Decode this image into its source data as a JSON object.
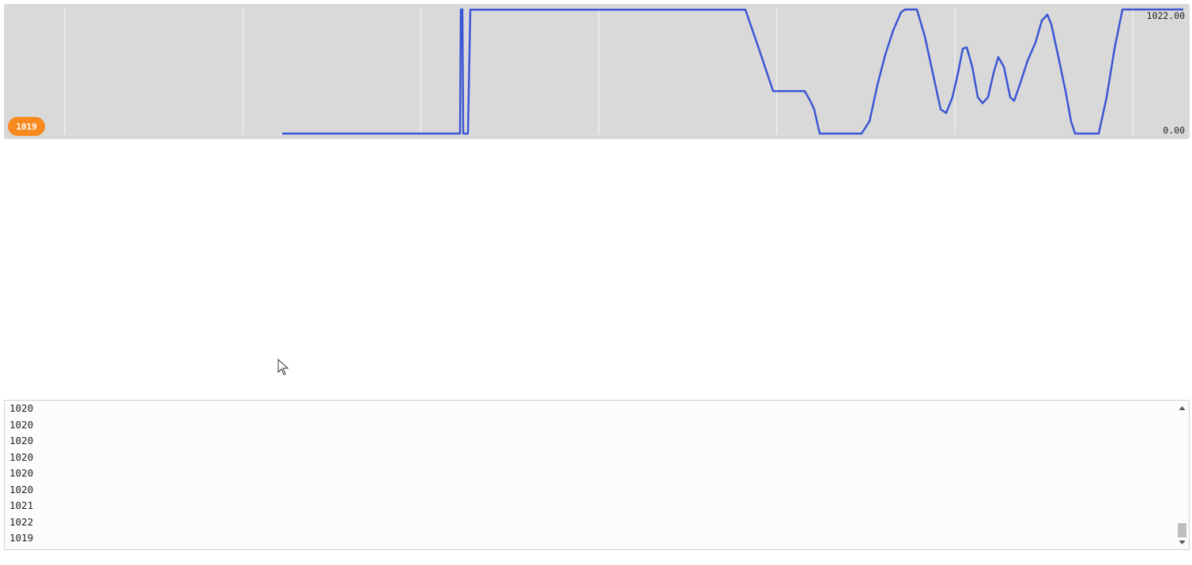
{
  "chart_data": {
    "type": "line",
    "x": [
      70.4,
      115.4,
      115.6,
      116,
      116.2,
      117.4,
      118,
      187.6,
      191,
      194.6,
      196,
      202.6,
      204,
      205,
      206.4,
      217,
      219,
      221,
      223,
      225,
      227,
      228,
      231,
      233,
      235,
      237,
      238.4,
      240,
      241.4,
      242.6,
      243.6,
      245,
      246.4,
      247.6,
      249,
      250.4,
      251.6,
      253,
      254.6,
      255.6,
      257,
      259,
      261,
      262.6,
      264,
      265,
      267,
      268.6,
      270,
      271,
      277,
      279,
      281,
      283,
      298.4
    ],
    "series": [
      {
        "color": "#3b56d4",
        "values": [
          0,
          0,
          1022,
          1022,
          0,
          0,
          1020,
          1020,
          700,
          350,
          350,
          350,
          270,
          200,
          0,
          0,
          100,
          400,
          650,
          850,
          1000,
          1022,
          1022,
          800,
          500,
          200,
          170,
          300,
          500,
          700,
          710,
          550,
          300,
          250,
          300,
          500,
          630,
          550,
          300,
          270,
          400,
          600,
          750,
          930,
          980,
          900,
          600,
          350,
          100,
          0,
          0,
          300,
          700,
          1022,
          1022
        ]
      }
    ],
    "xlim": [
      0,
      300
    ],
    "ylim": [
      0,
      1022
    ],
    "yticks": [
      {
        "value": 0,
        "label": "0.00"
      },
      {
        "value": 1022,
        "label": "1022.00"
      }
    ],
    "current_value": "1019"
  },
  "serial_log": [
    "1020",
    "1020",
    "1020",
    "1020",
    "1020",
    "1020",
    "1021",
    "1022",
    "1019"
  ]
}
